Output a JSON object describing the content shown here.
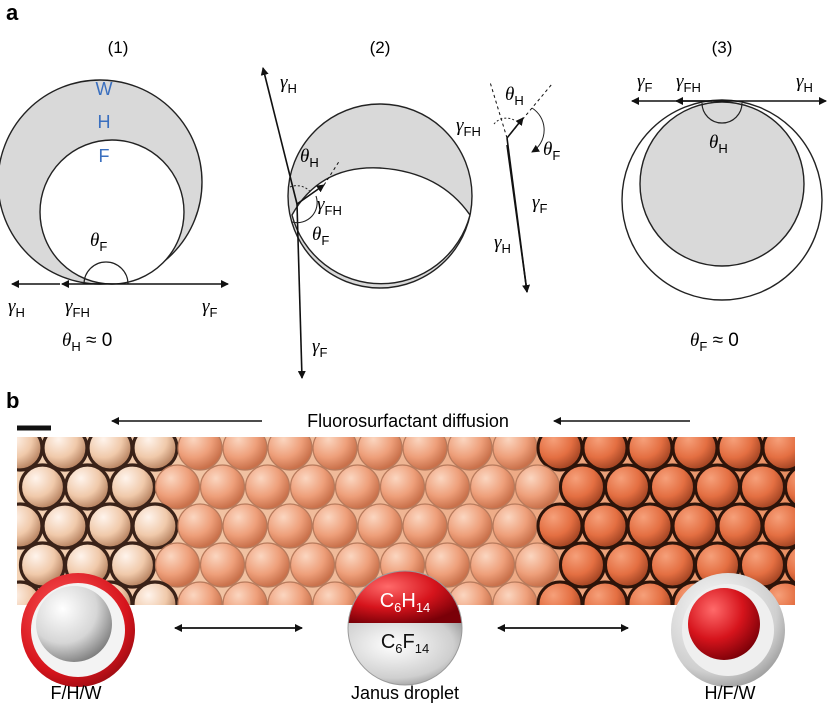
{
  "panel_a": {
    "label": "a",
    "sub1": {
      "title": "(1)",
      "layer_w": "W",
      "layer_h": "H",
      "layer_f": "F"
    },
    "sub2": {
      "title": "(2)"
    },
    "sub3": {
      "title": "(3)"
    },
    "cond1": {
      "sym": "θ",
      "sub": "H",
      "rest": " ≈ 0"
    },
    "cond3": {
      "sym": "θ",
      "sub": "F",
      "rest": " ≈ 0"
    },
    "gamma": "γ",
    "theta": "θ",
    "sub_H": "H",
    "sub_F": "F",
    "sub_FH": "FH"
  },
  "panel_b": {
    "label": "b",
    "arrow_caption": "Fluorosurfactant diffusion",
    "janus_top": {
      "base": "C",
      "s1": "6",
      "mid": "H",
      "s2": "14"
    },
    "janus_bottom": {
      "base": "C",
      "s1": "6",
      "mid": "F",
      "s2": "14"
    },
    "labels": {
      "left": "F/H/W",
      "middle": "Janus droplet",
      "right": "H/F/W"
    }
  },
  "colors": {
    "layer_letters": "#3a6fbf",
    "hydrocarbon_red": "#d6141c",
    "fluorocarbon_grey": "#c8c8c8",
    "shaded_region": "#d9d9d9"
  }
}
